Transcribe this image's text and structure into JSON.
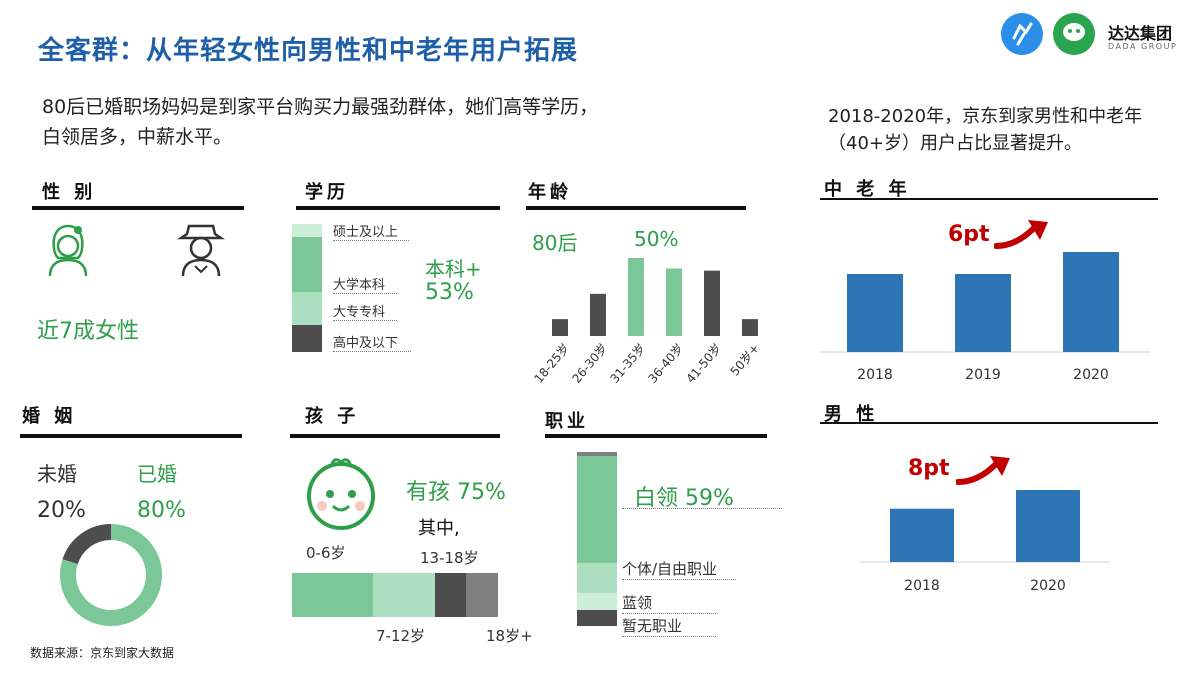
{
  "header": {
    "title": "全客群：从年轻女性向男性和中老年用户拓展",
    "subtitle": "80后已婚职场妈妈是到家平台购买力最强劲群体，她们高等学历，白领居多，中薪水平。",
    "right_note": "2018-2020年，京东到家男性和中老年（40+岁）用户占比显著提升。"
  },
  "logo": {
    "badge1": "达达快送",
    "badge2": "京东到家",
    "name": "达达集团",
    "sub": "DADA GROUP"
  },
  "gender": {
    "section": "性 别",
    "note": "近7成女性"
  },
  "education": {
    "section": "学历",
    "labels": [
      "硕士及以上",
      "大学本科",
      "大专专科",
      "高中及以下"
    ],
    "callout_label": "本科+",
    "callout_value": "53%"
  },
  "age": {
    "section": "年龄",
    "callout_80": "80后",
    "callout_pct": "50%"
  },
  "marriage": {
    "section": "婚 姻",
    "unmarried_label": "未婚",
    "married_label": "已婚",
    "unmarried_value": "20%",
    "married_value": "80%"
  },
  "children": {
    "section": "孩 子",
    "callout": "有孩 75%",
    "among": "其中,",
    "labels": [
      "0-6岁",
      "7-12岁",
      "13-18岁",
      "18岁+"
    ]
  },
  "occupation": {
    "section": "职业",
    "callout": "白领 59%",
    "labels": [
      "个体/自由职业",
      "蓝领",
      "暂无职业"
    ]
  },
  "middle_aged": {
    "section": "中 老 年",
    "callout": "6pt"
  },
  "male": {
    "section": "男 性",
    "callout": "8pt"
  },
  "source": "数据来源：京东到家大数据",
  "colors": {
    "green_dark": "#7cc797",
    "green_light": "#acdfbf",
    "green_pale": "#cdeed9",
    "gray_dark": "#4d4d4d",
    "gray_mid": "#808080",
    "blue": "#2e75b6",
    "red": "#c00000"
  },
  "chart_data": [
    {
      "type": "bar",
      "name": "age",
      "categories": [
        "18-25岁",
        "26-30岁",
        "31-35岁",
        "36-40岁",
        "41-50岁",
        "50岁+"
      ],
      "values": [
        8,
        20,
        37,
        32,
        31,
        8
      ],
      "highlight": [
        false,
        false,
        true,
        true,
        false,
        false
      ]
    },
    {
      "type": "stacked-bar",
      "name": "education",
      "categories": [
        "硕士及以上",
        "大学本科",
        "大专专科",
        "高中及以下"
      ],
      "values": [
        10,
        43,
        26,
        21
      ]
    },
    {
      "type": "pie",
      "name": "marriage",
      "categories": [
        "已婚",
        "未婚"
      ],
      "values": [
        80,
        20
      ]
    },
    {
      "type": "stacked-bar",
      "name": "children_age",
      "categories": [
        "0-6岁",
        "7-12岁",
        "13-18岁",
        "18岁+"
      ],
      "values": [
        46,
        35,
        18,
        18
      ]
    },
    {
      "type": "stacked-bar",
      "name": "occupation",
      "categories": [
        "白领",
        "个体/自由职业",
        "蓝领",
        "暂无职业"
      ],
      "values": [
        59,
        17,
        9,
        9
      ]
    },
    {
      "type": "bar",
      "name": "middle_aged",
      "categories": [
        "2018",
        "2019",
        "2020"
      ],
      "values": [
        78,
        78,
        100
      ]
    },
    {
      "type": "bar",
      "name": "male",
      "categories": [
        "2018",
        "2020"
      ],
      "values": [
        74,
        100
      ]
    }
  ]
}
